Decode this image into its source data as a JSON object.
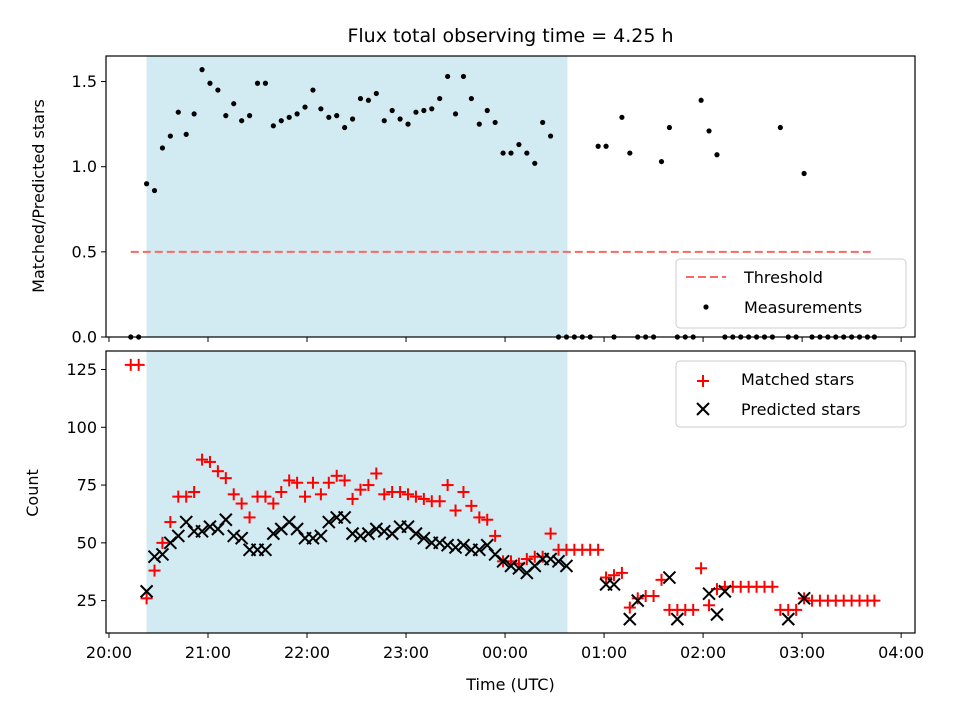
{
  "chart_data": [
    {
      "type": "scatter",
      "title": "Flux total observing time = 4.25 h",
      "ylabel": "Matched/Predicted stars",
      "xlim": [
        -0.03,
        8.14
      ],
      "ylim": [
        0,
        1.65
      ],
      "yticks": [
        0.0,
        0.5,
        1.0,
        1.5
      ],
      "ytick_labels": [
        "0.0",
        "0.5",
        "1.0",
        "1.5"
      ],
      "shaded_span": {
        "x_start": 0.38,
        "x_end": 4.63,
        "color": "#add8e6"
      },
      "threshold": {
        "name": "Threshold",
        "y": 0.5,
        "x_start": 0.22,
        "x_end": 7.73,
        "color": "#ff6666"
      },
      "legend": {
        "placement": "lower-right",
        "entries": [
          "Threshold",
          "Measurements"
        ]
      },
      "series": [
        {
          "name": "Measurements",
          "color": "#000000",
          "x": [
            0.22,
            0.3,
            0.38,
            0.46,
            0.54,
            0.62,
            0.7,
            0.78,
            0.86,
            0.94,
            1.02,
            1.1,
            1.18,
            1.26,
            1.34,
            1.42,
            1.5,
            1.58,
            1.66,
            1.74,
            1.82,
            1.9,
            1.98,
            2.06,
            2.14,
            2.22,
            2.3,
            2.38,
            2.46,
            2.54,
            2.62,
            2.7,
            2.78,
            2.86,
            2.94,
            3.02,
            3.1,
            3.18,
            3.26,
            3.34,
            3.42,
            3.5,
            3.58,
            3.66,
            3.74,
            3.82,
            3.9,
            3.98,
            4.06,
            4.14,
            4.22,
            4.3,
            4.38,
            4.46,
            4.54,
            4.62,
            4.7,
            4.78,
            4.86,
            4.94,
            5.02,
            5.1,
            5.18,
            5.26,
            5.34,
            5.42,
            5.5,
            5.58,
            5.66,
            5.74,
            5.82,
            5.9,
            5.98,
            6.06,
            6.14,
            6.22,
            6.3,
            6.38,
            6.46,
            6.54,
            6.62,
            6.7,
            6.78,
            6.86,
            6.94,
            7.02,
            7.1,
            7.18,
            7.26,
            7.34,
            7.42,
            7.5,
            7.58,
            7.66,
            7.73
          ],
          "y": [
            0,
            0,
            0.9,
            0.86,
            1.11,
            1.18,
            1.32,
            1.19,
            1.31,
            1.57,
            1.49,
            1.45,
            1.3,
            1.37,
            1.27,
            1.3,
            1.49,
            1.49,
            1.24,
            1.27,
            1.29,
            1.31,
            1.35,
            1.45,
            1.34,
            1.29,
            1.3,
            1.23,
            1.28,
            1.4,
            1.39,
            1.43,
            1.27,
            1.33,
            1.28,
            1.25,
            1.32,
            1.33,
            1.34,
            1.4,
            1.53,
            1.31,
            1.53,
            1.4,
            1.25,
            1.33,
            1.26,
            1.08,
            1.08,
            1.13,
            1.08,
            1.02,
            1.26,
            1.18,
            0,
            0,
            0,
            0,
            0,
            1.12,
            1.12,
            0,
            1.29,
            1.08,
            0,
            0,
            0,
            1.03,
            1.23,
            0,
            0,
            0,
            1.39,
            1.21,
            1.07,
            0,
            0,
            0,
            0,
            0,
            0,
            0,
            1.23,
            0,
            0,
            0.96,
            0,
            0,
            0,
            0,
            0,
            0,
            0,
            0,
            0
          ]
        }
      ]
    },
    {
      "type": "scatter",
      "xlabel": "Time (UTC)",
      "ylabel": "Count",
      "xlim": [
        -0.03,
        8.14
      ],
      "ylim": [
        11,
        133
      ],
      "xticks": [
        0,
        1,
        2,
        3,
        4,
        5,
        6,
        7,
        8
      ],
      "xtick_labels": [
        "20:00",
        "21:00",
        "22:00",
        "23:00",
        "00:00",
        "01:00",
        "02:00",
        "03:00",
        "04:00"
      ],
      "yticks": [
        25,
        50,
        75,
        100,
        125
      ],
      "ytick_labels": [
        "25",
        "50",
        "75",
        "100",
        "125"
      ],
      "shaded_span": {
        "x_start": 0.38,
        "x_end": 4.63,
        "color": "#add8e6"
      },
      "legend": {
        "placement": "upper-right",
        "entries": [
          "Matched stars",
          "Predicted stars"
        ]
      },
      "series": [
        {
          "name": "Matched stars",
          "marker": "+",
          "color": "#ff0000",
          "x": [
            0.22,
            0.3,
            0.38,
            0.46,
            0.54,
            0.62,
            0.7,
            0.78,
            0.86,
            0.94,
            1.02,
            1.1,
            1.18,
            1.26,
            1.34,
            1.42,
            1.5,
            1.58,
            1.66,
            1.74,
            1.82,
            1.9,
            1.98,
            2.06,
            2.14,
            2.22,
            2.3,
            2.38,
            2.46,
            2.54,
            2.62,
            2.7,
            2.78,
            2.86,
            2.94,
            3.02,
            3.1,
            3.18,
            3.26,
            3.34,
            3.42,
            3.5,
            3.58,
            3.66,
            3.74,
            3.82,
            3.9,
            3.98,
            4.06,
            4.14,
            4.22,
            4.3,
            4.38,
            4.46,
            4.54,
            4.62,
            4.7,
            4.78,
            4.86,
            4.94,
            5.02,
            5.1,
            5.18,
            5.26,
            5.34,
            5.42,
            5.5,
            5.58,
            5.66,
            5.74,
            5.82,
            5.9,
            5.98,
            6.06,
            6.14,
            6.22,
            6.3,
            6.38,
            6.46,
            6.54,
            6.62,
            6.7,
            6.78,
            6.86,
            6.94,
            7.02,
            7.1,
            7.18,
            7.26,
            7.34,
            7.42,
            7.5,
            7.58,
            7.66,
            7.73
          ],
          "y": [
            127,
            127,
            26,
            38,
            50,
            59,
            70,
            70,
            72,
            86,
            85,
            81,
            78,
            71,
            67,
            61,
            70,
            70,
            67,
            72,
            77,
            76,
            70,
            76,
            71,
            76,
            79,
            77,
            69,
            73,
            75,
            80,
            71,
            72,
            72,
            71,
            70,
            69,
            68,
            68,
            75,
            64,
            72,
            66,
            61,
            60,
            53,
            42,
            42,
            41,
            43,
            44,
            44,
            54,
            47,
            47,
            47,
            47,
            47,
            47,
            35,
            36,
            37,
            22,
            26,
            27,
            27,
            34,
            21,
            21,
            21,
            21,
            39,
            23,
            30,
            31,
            31,
            31,
            31,
            31,
            31,
            31,
            21,
            21,
            21,
            26,
            25,
            25,
            25,
            25,
            25,
            25,
            25,
            25,
            25
          ]
        },
        {
          "name": "Predicted stars",
          "marker": "x",
          "color": "#000000",
          "x": [
            0.38,
            0.46,
            0.54,
            0.62,
            0.7,
            0.78,
            0.86,
            0.94,
            1.02,
            1.1,
            1.18,
            1.26,
            1.34,
            1.42,
            1.5,
            1.58,
            1.66,
            1.74,
            1.82,
            1.9,
            1.98,
            2.06,
            2.14,
            2.22,
            2.3,
            2.38,
            2.46,
            2.54,
            2.62,
            2.7,
            2.78,
            2.86,
            2.94,
            3.02,
            3.1,
            3.18,
            3.26,
            3.34,
            3.42,
            3.5,
            3.58,
            3.66,
            3.74,
            3.82,
            3.9,
            3.98,
            4.06,
            4.14,
            4.22,
            4.3,
            4.38,
            4.46,
            4.54,
            4.62,
            5.02,
            5.1,
            5.26,
            5.34,
            5.66,
            5.74,
            6.06,
            6.14,
            6.22,
            6.86,
            7.02
          ],
          "y": [
            29,
            44,
            45,
            50,
            53,
            59,
            55,
            55,
            57,
            56,
            60,
            53,
            52,
            47,
            47,
            47,
            54,
            56,
            59,
            56,
            52,
            52,
            53,
            59,
            61,
            61,
            54,
            53,
            54,
            56,
            55,
            54,
            57,
            57,
            54,
            52,
            50,
            50,
            49,
            48,
            49,
            47,
            47,
            49,
            45,
            42,
            40,
            39,
            37,
            40,
            43,
            43,
            42,
            40,
            32,
            32,
            17,
            25,
            35,
            17,
            28,
            19,
            29,
            17,
            26
          ]
        }
      ]
    }
  ]
}
